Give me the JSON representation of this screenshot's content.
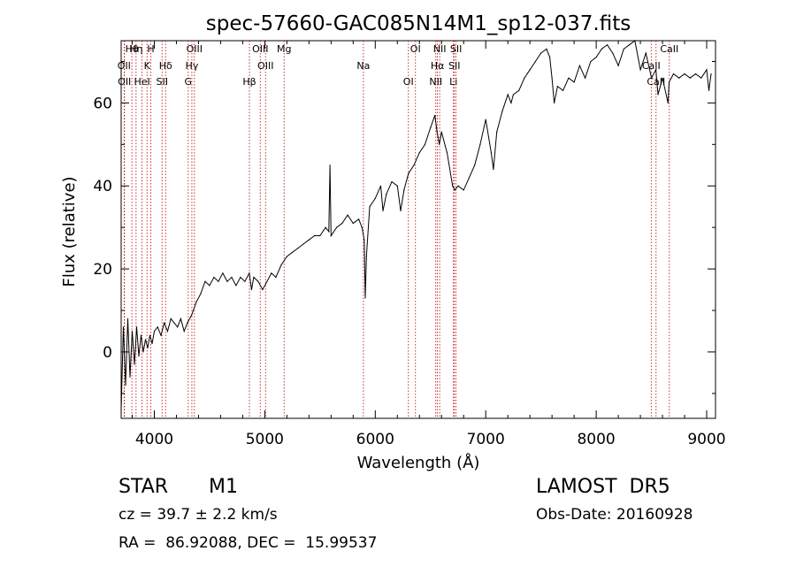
{
  "chart_data": {
    "type": "line",
    "title": "spec-57660-GAC085N14M1_sp12-037.fits",
    "xlabel": "Wavelength (Å)",
    "ylabel": "Flux (relative)",
    "xlim": [
      3700,
      9080
    ],
    "ylim": [
      -16,
      75
    ],
    "xticks": [
      4000,
      5000,
      6000,
      7000,
      8000,
      9000
    ],
    "yticks": [
      0,
      20,
      40,
      60
    ],
    "grid": false,
    "series": [
      {
        "x": [
          3700,
          3720,
          3740,
          3760,
          3780,
          3800,
          3820,
          3840,
          3860,
          3880,
          3900,
          3920,
          3940,
          3960,
          3980,
          4000,
          4030,
          4060,
          4090,
          4120,
          4150,
          4180,
          4210,
          4240,
          4270,
          4300,
          4340,
          4380,
          4420,
          4460,
          4500,
          4540,
          4580,
          4620,
          4660,
          4700,
          4740,
          4780,
          4820,
          4860,
          4880,
          4900,
          4940,
          4980,
          5020,
          5060,
          5100,
          5150,
          5200,
          5250,
          5300,
          5350,
          5400,
          5450,
          5500,
          5550,
          5580,
          5590,
          5600,
          5650,
          5700,
          5750,
          5800,
          5850,
          5880,
          5900,
          5910,
          5920,
          5950,
          6000,
          6050,
          6070,
          6100,
          6150,
          6200,
          6230,
          6260,
          6300,
          6350,
          6400,
          6450,
          6500,
          6540,
          6560,
          6580,
          6600,
          6650,
          6700,
          6720,
          6750,
          6800,
          6850,
          6900,
          6950,
          7000,
          7050,
          7070,
          7100,
          7150,
          7200,
          7230,
          7250,
          7300,
          7350,
          7400,
          7450,
          7500,
          7550,
          7580,
          7600,
          7620,
          7650,
          7700,
          7750,
          7800,
          7850,
          7900,
          7950,
          8000,
          8050,
          8100,
          8150,
          8200,
          8250,
          8300,
          8350,
          8400,
          8450,
          8500,
          8540,
          8560,
          8600,
          8650,
          8660,
          8700,
          8750,
          8800,
          8850,
          8900,
          8950,
          9000,
          9020,
          9040
        ],
        "y": [
          -14,
          6,
          -8,
          8,
          -6,
          5,
          -3,
          6,
          -1,
          4,
          0,
          3,
          1,
          4,
          2,
          5,
          6,
          4,
          7,
          5,
          8,
          7,
          6,
          8,
          5,
          7,
          9,
          12,
          14,
          17,
          16,
          18,
          17,
          19,
          17,
          18,
          16,
          18,
          17,
          19,
          15,
          18,
          17,
          15,
          17,
          19,
          18,
          21,
          23,
          24,
          25,
          26,
          27,
          28,
          28,
          30,
          29,
          45,
          28,
          30,
          31,
          33,
          31,
          32,
          30,
          27,
          13,
          23,
          35,
          37,
          40,
          34,
          38,
          41,
          40,
          34,
          39,
          43,
          45,
          48,
          50,
          54,
          57,
          53,
          50,
          53,
          48,
          40,
          39,
          40,
          39,
          42,
          45,
          50,
          56,
          48,
          44,
          53,
          58,
          62,
          60,
          62,
          63,
          66,
          68,
          70,
          72,
          73,
          71,
          66,
          60,
          64,
          63,
          66,
          65,
          69,
          66,
          70,
          71,
          73,
          74,
          72,
          69,
          73,
          74,
          75,
          68,
          72,
          66,
          68,
          62,
          66,
          60,
          65,
          67,
          66,
          67,
          66,
          67,
          66,
          68,
          63,
          67
        ]
      }
    ],
    "lines": [
      {
        "label": "Hθ",
        "x": 3797
      },
      {
        "label": "OII",
        "x": 3727
      },
      {
        "label": "OII",
        "x": 3730
      },
      {
        "label": "Hη",
        "x": 3835
      },
      {
        "label": "K",
        "x": 3934
      },
      {
        "label": "HeI",
        "x": 3889
      },
      {
        "label": "H",
        "x": 3968
      },
      {
        "label": "Hδ",
        "x": 4102
      },
      {
        "label": "SII",
        "x": 4070
      },
      {
        "label": "OIII",
        "x": 4363
      },
      {
        "label": "Hγ",
        "x": 4340
      },
      {
        "label": "G",
        "x": 4307
      },
      {
        "label": "OIII",
        "x": 4959
      },
      {
        "label": "OIII",
        "x": 5007
      },
      {
        "label": "Hβ",
        "x": 4861
      },
      {
        "label": "Mg",
        "x": 5175
      },
      {
        "label": "Na",
        "x": 5893
      },
      {
        "label": "OI",
        "x": 6300
      },
      {
        "label": "OI",
        "x": 6364
      },
      {
        "label": "Hα",
        "x": 6563
      },
      {
        "label": "NII",
        "x": 6548
      },
      {
        "label": "NII",
        "x": 6583
      },
      {
        "label": "SII",
        "x": 6716
      },
      {
        "label": "Li",
        "x": 6708
      },
      {
        "label": "SII",
        "x": 6731
      },
      {
        "label": "CaII",
        "x": 8498
      },
      {
        "label": "CaII",
        "x": 8542
      },
      {
        "label": "CaII",
        "x": 8662
      }
    ]
  },
  "info": {
    "class": "STAR",
    "subclass": "M1",
    "survey": "LAMOST  DR5",
    "cz": "cz = 39.7 ± 2.2 km/s",
    "obs_date": "Obs-Date: 20160928",
    "radec": "RA =  86.92088, DEC =  15.99537"
  }
}
